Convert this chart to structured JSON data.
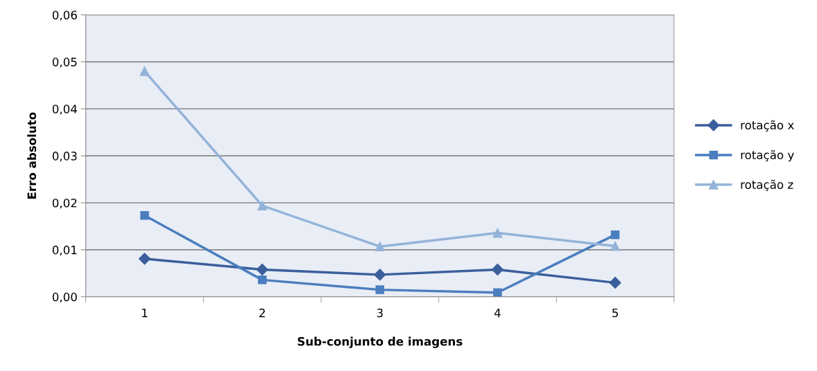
{
  "chart_data": {
    "type": "line",
    "xlabel": "Sub-conjunto de imagens",
    "ylabel": "Erro absoluto",
    "categories": [
      "1",
      "2",
      "3",
      "4",
      "5"
    ],
    "series": [
      {
        "name": "rotação x",
        "color": "#3a5f9c",
        "marker": "diamond",
        "values": [
          0.0081,
          0.0058,
          0.0047,
          0.0058,
          0.003
        ]
      },
      {
        "name": "rotação y",
        "color": "#4a7ebf",
        "marker": "square",
        "values": [
          0.0173,
          0.0036,
          0.0015,
          0.0009,
          0.0132
        ]
      },
      {
        "name": "rotação z",
        "color": "#94b3d9",
        "marker": "triangle",
        "values": [
          0.048,
          0.0194,
          0.0107,
          0.0136,
          0.0108
        ]
      }
    ],
    "ylim": [
      0,
      0.06
    ],
    "yticks": [
      {
        "value": 0,
        "label": "0,00"
      },
      {
        "value": 0.01,
        "label": "0,01"
      },
      {
        "value": 0.02,
        "label": "0,02"
      },
      {
        "value": 0.03,
        "label": "0,03"
      },
      {
        "value": 0.04,
        "label": "0,04"
      },
      {
        "value": 0.05,
        "label": "0,05"
      },
      {
        "value": 0.06,
        "label": "0,06"
      }
    ],
    "grid": "y",
    "legend": "right",
    "line_style": "solid"
  }
}
